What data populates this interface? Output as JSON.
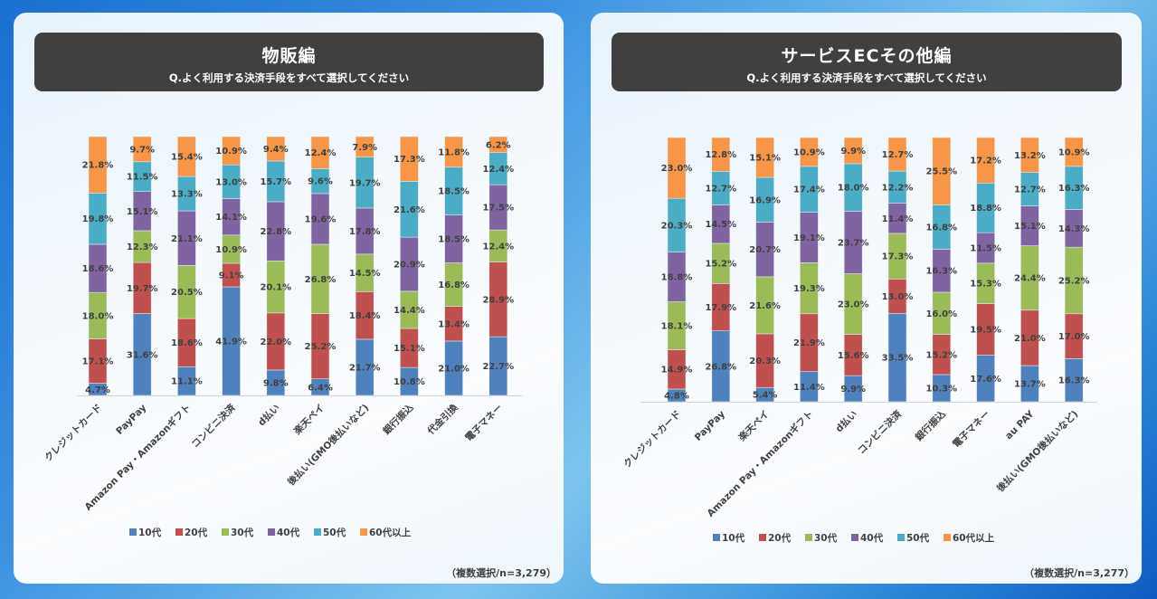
{
  "legend": [
    "10代",
    "20代",
    "30代",
    "40代",
    "50代",
    "60代以上"
  ],
  "colors": [
    "#4f81bd",
    "#c0504d",
    "#9bbb59",
    "#8064a2",
    "#4bacc6",
    "#f79646"
  ],
  "panels": [
    {
      "title": "物販編",
      "subtitle": "Q.よく利用する決済手段をすべて選択してください",
      "footnote": "（複数選択/n=3,279）"
    },
    {
      "title": "サービスECその他編",
      "subtitle": "Q.よく利用する決済手段をすべて選択してください",
      "footnote": "（複数選択/n=3,277）"
    }
  ],
  "chart_data": [
    {
      "type": "bar",
      "stacked": "percent",
      "categories": [
        "クレジットカード",
        "PayPay",
        "Amazon Pay・Amazonギフト",
        "コンビニ決済",
        "d払い",
        "楽天ペイ",
        "後払い(GMO後払いなど)",
        "銀行振込",
        "代金引換",
        "電子マネー"
      ],
      "series": [
        {
          "name": "10代",
          "values": [
            4.7,
            31.6,
            11.1,
            41.9,
            9.8,
            6.4,
            21.7,
            10.8,
            21.0,
            22.7
          ]
        },
        {
          "name": "20代",
          "values": [
            17.1,
            19.7,
            18.6,
            9.1,
            22.0,
            25.2,
            18.4,
            15.1,
            13.4,
            28.9
          ]
        },
        {
          "name": "30代",
          "values": [
            18.0,
            12.3,
            20.5,
            10.9,
            20.1,
            26.8,
            14.5,
            14.4,
            16.8,
            12.4
          ]
        },
        {
          "name": "40代",
          "values": [
            18.6,
            15.1,
            21.1,
            14.1,
            22.8,
            19.6,
            17.8,
            20.9,
            18.5,
            17.5
          ]
        },
        {
          "name": "50代",
          "values": [
            19.8,
            11.5,
            13.3,
            13.0,
            15.7,
            9.6,
            19.7,
            21.6,
            18.5,
            12.4
          ]
        },
        {
          "name": "60代以上",
          "values": [
            21.8,
            9.7,
            15.4,
            10.9,
            9.4,
            12.4,
            7.9,
            17.3,
            11.8,
            6.2
          ]
        }
      ],
      "legend_position": "bottom",
      "grid": false
    },
    {
      "type": "bar",
      "stacked": "percent",
      "categories": [
        "クレジットカード",
        "PayPay",
        "楽天ペイ",
        "Amazon Pay・Amazonギフト",
        "d払い",
        "コンビニ決済",
        "銀行振込",
        "電子マネー",
        "au PAY",
        "後払い(GMO後払いなど)"
      ],
      "series": [
        {
          "name": "10代",
          "values": [
            4.8,
            26.8,
            5.4,
            11.4,
            9.9,
            33.5,
            10.3,
            17.6,
            13.7,
            16.3
          ]
        },
        {
          "name": "20代",
          "values": [
            14.9,
            17.9,
            20.3,
            21.9,
            15.6,
            13.0,
            15.2,
            19.5,
            21.0,
            17.0
          ]
        },
        {
          "name": "30代",
          "values": [
            18.1,
            15.2,
            21.6,
            19.3,
            23.0,
            17.3,
            16.0,
            15.3,
            24.4,
            25.2
          ]
        },
        {
          "name": "40代",
          "values": [
            18.8,
            14.5,
            20.7,
            19.1,
            23.7,
            11.4,
            16.3,
            11.5,
            15.1,
            14.3
          ]
        },
        {
          "name": "50代",
          "values": [
            20.3,
            12.7,
            16.9,
            17.4,
            18.0,
            12.2,
            16.8,
            18.8,
            12.7,
            16.3
          ]
        },
        {
          "name": "60代以上",
          "values": [
            23.0,
            12.8,
            15.1,
            10.9,
            9.9,
            12.7,
            25.5,
            17.2,
            13.2,
            10.9
          ]
        }
      ],
      "legend_position": "bottom",
      "grid": false
    }
  ]
}
